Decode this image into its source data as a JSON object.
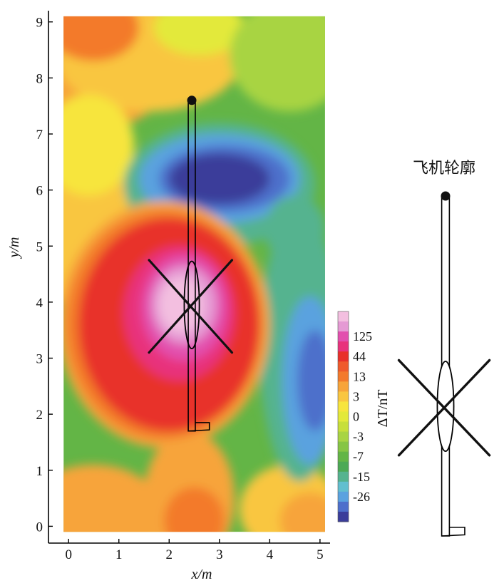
{
  "chart_data": {
    "type": "heatmap",
    "title": "",
    "xlabel": "x/m",
    "ylabel": "y/m",
    "xlim": [
      -0.4,
      5.2
    ],
    "ylim": [
      -0.3,
      9.2
    ],
    "data_extent": {
      "x": [
        -0.1,
        5.1
      ],
      "y": [
        -0.1,
        9.1
      ]
    },
    "x_ticks": [
      0,
      1,
      2,
      3,
      4,
      5
    ],
    "y_ticks": [
      0,
      1,
      2,
      3,
      4,
      5,
      6,
      7,
      8,
      9
    ],
    "colorbar": {
      "label": "ΔT/nT",
      "tick_labels": [
        "125",
        "44",
        "13",
        "3",
        "0",
        "-3",
        "-7",
        "-15",
        "-26"
      ],
      "levels": [
        {
          "value": 250,
          "color": "#f3bfe0"
        },
        {
          "value": 180,
          "color": "#e59ad4"
        },
        {
          "value": 125,
          "color": "#e24fae"
        },
        {
          "value": 80,
          "color": "#e8327c"
        },
        {
          "value": 44,
          "color": "#e8302a"
        },
        {
          "value": 25,
          "color": "#ef5a2b"
        },
        {
          "value": 13,
          "color": "#f37a2c"
        },
        {
          "value": 6,
          "color": "#f7a43a"
        },
        {
          "value": 3,
          "color": "#f9c640"
        },
        {
          "value": 1.5,
          "color": "#f7e53d"
        },
        {
          "value": 0,
          "color": "#e3e93a"
        },
        {
          "value": -1.5,
          "color": "#c7df3a"
        },
        {
          "value": -3,
          "color": "#a8d443"
        },
        {
          "value": -5,
          "color": "#86c544"
        },
        {
          "value": -7,
          "color": "#63b546"
        },
        {
          "value": -11,
          "color": "#4ca955"
        },
        {
          "value": -15,
          "color": "#55b38f"
        },
        {
          "value": -20,
          "color": "#62bfcf"
        },
        {
          "value": -26,
          "color": "#5aa2df"
        },
        {
          "value": -35,
          "color": "#4e6fcb"
        },
        {
          "value": -50,
          "color": "#3b3d9a"
        }
      ]
    },
    "anomalies": [
      {
        "kind": "positive",
        "center": [
          2.3,
          3.9
        ],
        "peak_nT": 250
      },
      {
        "kind": "negative",
        "center": [
          3.0,
          6.2
        ],
        "peak_nT": -50
      },
      {
        "kind": "negative",
        "center": [
          4.7,
          2.8
        ],
        "peak_nT": -35
      }
    ],
    "overlay_outline": {
      "nose": [
        2.45,
        7.6
      ],
      "fuselage_x": [
        2.38,
        2.52
      ],
      "fuselage_y": [
        1.7,
        7.6
      ],
      "ellipse_center": [
        2.45,
        3.95
      ],
      "ellipse_radii": [
        0.15,
        0.78
      ],
      "wing1": [
        [
          1.6,
          4.75
        ],
        [
          3.25,
          3.1
        ]
      ],
      "wing2": [
        [
          1.6,
          3.1
        ],
        [
          3.25,
          4.75
        ]
      ],
      "tail": [
        [
          2.38,
          1.7
        ],
        [
          2.8,
          1.72
        ],
        [
          2.8,
          1.85
        ],
        [
          2.52,
          1.85
        ]
      ]
    }
  },
  "legend_panel": {
    "title": "飞机轮廓"
  }
}
